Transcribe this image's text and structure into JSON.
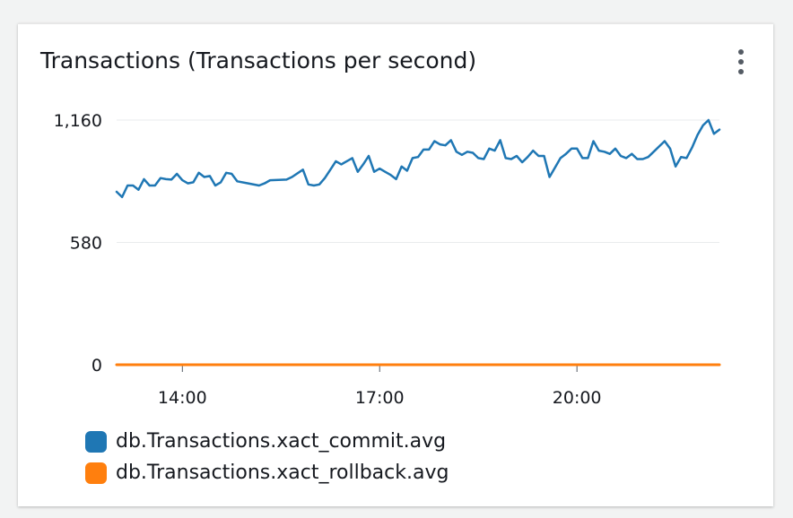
{
  "widget": {
    "title": "Transactions (Transactions per second)",
    "menu_icon": "vertical-ellipsis-icon"
  },
  "colors": {
    "commit": "#1f77b4",
    "rollback": "#ff7f0e",
    "grid": "#e9ebed",
    "axis": "#545b64"
  },
  "chart_data": {
    "type": "line",
    "title": "Transactions (Transactions per second)",
    "ylim": [
      0,
      1160
    ],
    "y_ticks": [
      {
        "value": 0,
        "label": "0"
      },
      {
        "value": 580,
        "label": "580"
      },
      {
        "value": 1160,
        "label": "1,160"
      }
    ],
    "x_range": [
      "13:00",
      "22:00"
    ],
    "x_ticks": [
      {
        "value": "14:00",
        "label": "14:00"
      },
      {
        "value": "17:00",
        "label": "17:00"
      },
      {
        "value": "20:00",
        "label": "20:00"
      }
    ],
    "grid": true,
    "legend_position": "bottom-left",
    "series": [
      {
        "name": "db.Transactions.xact_commit.avg",
        "color": "#1f77b4",
        "points": [
          [
            "13:00",
            820
          ],
          [
            "13:05",
            795
          ],
          [
            "13:10",
            850
          ],
          [
            "13:15",
            850
          ],
          [
            "13:20",
            830
          ],
          [
            "13:25",
            880
          ],
          [
            "13:30",
            850
          ],
          [
            "13:35",
            850
          ],
          [
            "13:40",
            885
          ],
          [
            "13:45",
            880
          ],
          [
            "13:50",
            878
          ],
          [
            "13:55",
            905
          ],
          [
            "14:00",
            875
          ],
          [
            "14:05",
            860
          ],
          [
            "14:10",
            865
          ],
          [
            "14:15",
            910
          ],
          [
            "14:20",
            890
          ],
          [
            "14:25",
            895
          ],
          [
            "14:30",
            850
          ],
          [
            "14:35",
            865
          ],
          [
            "14:40",
            910
          ],
          [
            "14:45",
            905
          ],
          [
            "14:50",
            870
          ],
          [
            "15:00",
            860
          ],
          [
            "15:10",
            850
          ],
          [
            "15:15",
            860
          ],
          [
            "15:20",
            875
          ],
          [
            "15:35",
            878
          ],
          [
            "15:40",
            890
          ],
          [
            "15:50",
            925
          ],
          [
            "15:55",
            855
          ],
          [
            "16:00",
            850
          ],
          [
            "16:05",
            855
          ],
          [
            "16:10",
            885
          ],
          [
            "16:15",
            925
          ],
          [
            "16:20",
            965
          ],
          [
            "16:25",
            950
          ],
          [
            "16:30",
            965
          ],
          [
            "16:35",
            980
          ],
          [
            "16:40",
            915
          ],
          [
            "16:45",
            950
          ],
          [
            "16:50",
            990
          ],
          [
            "16:55",
            915
          ],
          [
            "17:00",
            930
          ],
          [
            "17:05",
            915
          ],
          [
            "17:10",
            900
          ],
          [
            "17:15",
            880
          ],
          [
            "17:20",
            940
          ],
          [
            "17:25",
            920
          ],
          [
            "17:30",
            980
          ],
          [
            "17:35",
            985
          ],
          [
            "17:40",
            1020
          ],
          [
            "17:45",
            1020
          ],
          [
            "17:50",
            1060
          ],
          [
            "17:55",
            1045
          ],
          [
            "18:00",
            1040
          ],
          [
            "18:05",
            1065
          ],
          [
            "18:10",
            1010
          ],
          [
            "18:15",
            995
          ],
          [
            "18:20",
            1010
          ],
          [
            "18:25",
            1005
          ],
          [
            "18:30",
            980
          ],
          [
            "18:35",
            975
          ],
          [
            "18:40",
            1025
          ],
          [
            "18:45",
            1015
          ],
          [
            "18:50",
            1065
          ],
          [
            "18:55",
            980
          ],
          [
            "19:00",
            975
          ],
          [
            "19:05",
            990
          ],
          [
            "19:10",
            960
          ],
          [
            "19:15",
            985
          ],
          [
            "19:20",
            1015
          ],
          [
            "19:25",
            990
          ],
          [
            "19:30",
            990
          ],
          [
            "19:35",
            890
          ],
          [
            "19:40",
            935
          ],
          [
            "19:45",
            980
          ],
          [
            "19:50",
            1000
          ],
          [
            "19:55",
            1025
          ],
          [
            "20:00",
            1025
          ],
          [
            "20:05",
            980
          ],
          [
            "20:10",
            980
          ],
          [
            "20:15",
            1060
          ],
          [
            "20:20",
            1015
          ],
          [
            "20:25",
            1010
          ],
          [
            "20:30",
            1000
          ],
          [
            "20:35",
            1025
          ],
          [
            "20:40",
            990
          ],
          [
            "20:45",
            980
          ],
          [
            "20:50",
            1000
          ],
          [
            "20:55",
            975
          ],
          [
            "21:00",
            975
          ],
          [
            "21:05",
            985
          ],
          [
            "21:10",
            1010
          ],
          [
            "21:15",
            1035
          ],
          [
            "21:20",
            1060
          ],
          [
            "21:25",
            1025
          ],
          [
            "21:30",
            940
          ],
          [
            "21:35",
            985
          ],
          [
            "21:40",
            980
          ],
          [
            "21:45",
            1030
          ],
          [
            "21:50",
            1090
          ],
          [
            "21:55",
            1135
          ],
          [
            "22:00",
            1160
          ],
          [
            "22:05",
            1095
          ],
          [
            "22:10",
            1115
          ]
        ]
      },
      {
        "name": "db.Transactions.xact_rollback.avg",
        "color": "#ff7f0e",
        "points": [
          [
            "13:00",
            0
          ],
          [
            "22:10",
            0
          ]
        ]
      }
    ]
  }
}
